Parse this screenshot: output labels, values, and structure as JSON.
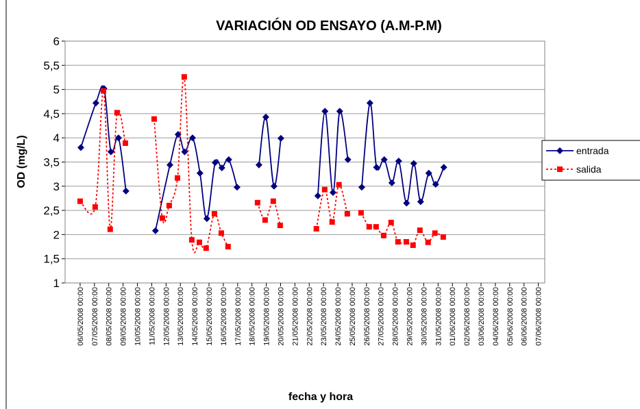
{
  "chart_data": {
    "type": "line",
    "title": "VARIACIÓN OD ENSAYO (A.M-P.M)",
    "x_label": "fecha y hora",
    "y_label": "OD (mg/L)",
    "ylim": [
      1,
      6
    ],
    "yticks": [
      1,
      {
        "value": 1.5,
        "label": "1,5"
      },
      2,
      {
        "value": 2.5,
        "label": "2,5"
      },
      3,
      {
        "value": 3.5,
        "label": "3,5"
      },
      4,
      {
        "value": 4.5,
        "label": "4,5"
      },
      5,
      {
        "value": 5.5,
        "label": "5,5"
      },
      6
    ],
    "xlim": [
      -1.05,
      32.45
    ],
    "xticks": [
      {
        "value": 0,
        "label": "06/05/2008 00:00"
      },
      {
        "value": 1,
        "label": "07/05/2008 00:00"
      },
      {
        "value": 2,
        "label": "08/05/2008 00:00"
      },
      {
        "value": 3,
        "label": "09/05/2008 00:00"
      },
      {
        "value": 4,
        "label": "10/05/2008 00:00"
      },
      {
        "value": 5,
        "label": "11/05/2008 00:00"
      },
      {
        "value": 6,
        "label": "12/05/2008 00:00"
      },
      {
        "value": 7,
        "label": "13/05/2008 00:00"
      },
      {
        "value": 8,
        "label": "14/05/2008 00:00"
      },
      {
        "value": 9,
        "label": "15/05/2008 00:00"
      },
      {
        "value": 10,
        "label": "16/05/2008 00:00"
      },
      {
        "value": 11,
        "label": "17/05/2008 00:00"
      },
      {
        "value": 12,
        "label": "18/05/2008 00:00"
      },
      {
        "value": 13,
        "label": "19/05/2008 00:00"
      },
      {
        "value": 14,
        "label": "20/05/2008 00:00"
      },
      {
        "value": 15,
        "label": "21/05/2008 00:00"
      },
      {
        "value": 16,
        "label": "22/05/2008 00:00"
      },
      {
        "value": 17,
        "label": "23/05/2008 00:00"
      },
      {
        "value": 18,
        "label": "24/05/2008 00:00"
      },
      {
        "value": 19,
        "label": "25/05/2008 00:00"
      },
      {
        "value": 20,
        "label": "26/05/2008 00:00"
      },
      {
        "value": 21,
        "label": "27/05/2008 00:00"
      },
      {
        "value": 22,
        "label": "28/05/2008 00:00"
      },
      {
        "value": 23,
        "label": "29/05/2008 00:00"
      },
      {
        "value": 24,
        "label": "30/05/2008 00:00"
      },
      {
        "value": 25,
        "label": "31/05/2008 00:00"
      },
      {
        "value": 26,
        "label": "01/06/2008 00:00"
      },
      {
        "value": 27,
        "label": "02/06/2008 00:00"
      },
      {
        "value": 28,
        "label": "03/06/2008 00:00"
      },
      {
        "value": 29,
        "label": "04/06/2008 00:00"
      },
      {
        "value": 30,
        "label": "05/06/2008 00:00"
      },
      {
        "value": 31,
        "label": "06/06/2008 00:00"
      },
      {
        "value": 32,
        "label": "07/06/2008 00:00"
      }
    ],
    "grid": true,
    "legend": "right",
    "series": [
      {
        "name": "entrada",
        "color": "#000080",
        "smooth": true,
        "dash": false,
        "marker": "diamond",
        "x": [
          0.05,
          1.1,
          1.67,
          2.15,
          2.68,
          3.2,
          null,
          5.26,
          6.27,
          6.84,
          7.3,
          7.85,
          8.37,
          8.85,
          9.43,
          9.9,
          10.38,
          10.96,
          null,
          12.49,
          12.97,
          13.54,
          14.02,
          null,
          16.6,
          17.1,
          17.66,
          18.13,
          18.7,
          null,
          19.67,
          20.24,
          20.7,
          21.24,
          21.77,
          22.25,
          22.8,
          23.3,
          23.78,
          24.35,
          24.83,
          25.4
        ],
        "values": [
          3.8,
          4.72,
          5.02,
          3.71,
          4.0,
          2.9,
          null,
          2.08,
          3.44,
          4.07,
          3.71,
          4.0,
          3.27,
          2.33,
          3.49,
          3.38,
          3.55,
          2.98,
          null,
          3.44,
          4.43,
          3.0,
          3.99,
          null,
          2.8,
          4.55,
          2.87,
          4.55,
          3.55,
          null,
          2.98,
          4.72,
          3.39,
          3.55,
          3.07,
          3.52,
          2.65,
          3.47,
          2.68,
          3.27,
          3.04,
          3.39
        ]
      },
      {
        "name": "salida",
        "color": "#ff0000",
        "smooth": true,
        "dash": true,
        "marker": "square",
        "x": [
          0.0,
          1.05,
          1.63,
          2.1,
          2.58,
          3.16,
          null,
          5.17,
          5.74,
          6.22,
          6.8,
          7.27,
          7.8,
          8.33,
          8.8,
          9.38,
          9.86,
          10.33,
          null,
          12.39,
          12.92,
          13.49,
          13.97,
          null,
          16.5,
          17.08,
          17.6,
          18.08,
          18.66,
          null,
          19.62,
          20.19,
          20.67,
          21.2,
          21.72,
          22.2,
          22.78,
          23.25,
          23.73,
          24.3,
          24.78,
          25.36
        ],
        "values": [
          2.69,
          2.57,
          4.97,
          2.11,
          4.52,
          3.89,
          null,
          4.39,
          2.34,
          2.6,
          3.17,
          5.26,
          1.89,
          1.84,
          1.72,
          2.43,
          2.03,
          1.75,
          null,
          2.66,
          2.3,
          2.69,
          2.19,
          null,
          2.12,
          2.93,
          2.26,
          3.03,
          2.43,
          null,
          2.45,
          2.16,
          2.16,
          1.98,
          2.25,
          1.85,
          1.85,
          1.78,
          2.09,
          1.84,
          2.03,
          1.95
        ]
      }
    ]
  }
}
